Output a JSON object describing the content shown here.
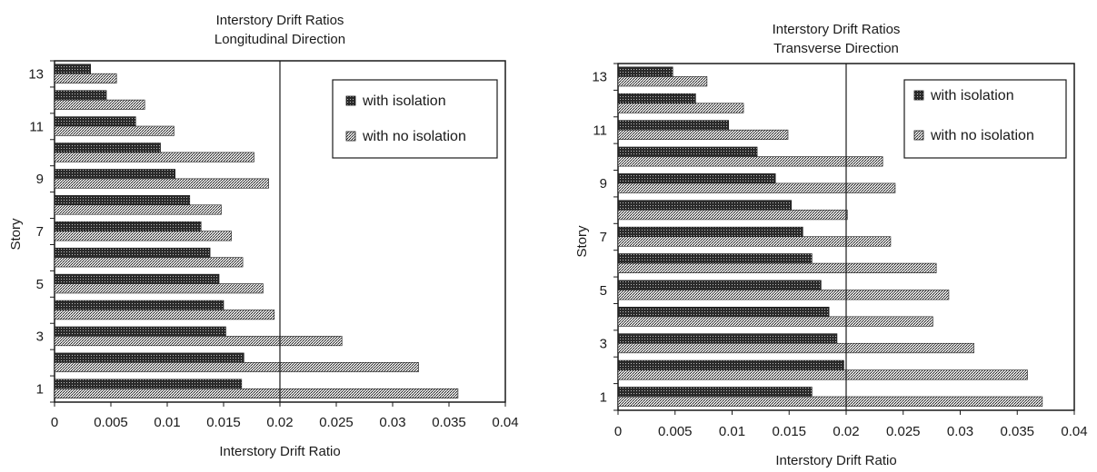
{
  "chart_data": [
    {
      "type": "bar",
      "orientation": "horizontal",
      "title": [
        "Interstory Drift Ratios",
        "Longitudinal Direction"
      ],
      "xlabel": "Interstory Drift Ratio",
      "ylabel": "Story",
      "xlim": [
        0,
        0.04
      ],
      "x_ticks": [
        "0",
        "0.005",
        "0.01",
        "0.015",
        "0.02",
        "0.025",
        "0.03",
        "0.035",
        "0.04"
      ],
      "categories": [
        "1",
        "2",
        "3",
        "4",
        "5",
        "6",
        "7",
        "8",
        "9",
        "10",
        "11",
        "12",
        "13"
      ],
      "category_tick_labels": [
        "1",
        "3",
        "5",
        "7",
        "9",
        "11",
        "13"
      ],
      "reference_line_x": 0.02,
      "legend_position": "top-right",
      "series": [
        {
          "name": "with isolation",
          "values": [
            0.0166,
            0.0168,
            0.0152,
            0.015,
            0.0146,
            0.0138,
            0.013,
            0.012,
            0.0107,
            0.0094,
            0.0072,
            0.0046,
            0.0032
          ]
        },
        {
          "name": "with no isolation",
          "values": [
            0.0358,
            0.0323,
            0.0255,
            0.0195,
            0.0185,
            0.0167,
            0.0157,
            0.0148,
            0.019,
            0.0177,
            0.0106,
            0.008,
            0.0055
          ]
        }
      ]
    },
    {
      "type": "bar",
      "orientation": "horizontal",
      "title": [
        "Interstory Drift Ratios",
        "Transverse  Direction"
      ],
      "xlabel": "Interstory Drift Ratio",
      "ylabel": "Story",
      "xlim": [
        0,
        0.04
      ],
      "x_ticks": [
        "0",
        "0.005",
        "0.01",
        "0.015",
        "0.02",
        "0.025",
        "0.03",
        "0.035",
        "0.04"
      ],
      "categories": [
        "1",
        "2",
        "3",
        "4",
        "5",
        "6",
        "7",
        "8",
        "9",
        "10",
        "11",
        "12",
        "13"
      ],
      "category_tick_labels": [
        "1",
        "3",
        "5",
        "7",
        "9",
        "11",
        "13"
      ],
      "reference_line_x": 0.02,
      "legend_position": "top-right",
      "series": [
        {
          "name": "with isolation",
          "values": [
            0.017,
            0.0198,
            0.0192,
            0.0185,
            0.0178,
            0.017,
            0.0162,
            0.0152,
            0.0138,
            0.0122,
            0.0097,
            0.0068,
            0.0048
          ]
        },
        {
          "name": "with no isolation",
          "values": [
            0.0372,
            0.0359,
            0.0312,
            0.0276,
            0.029,
            0.0279,
            0.0239,
            0.0201,
            0.0243,
            0.0232,
            0.0149,
            0.011,
            0.0078
          ]
        }
      ]
    }
  ]
}
